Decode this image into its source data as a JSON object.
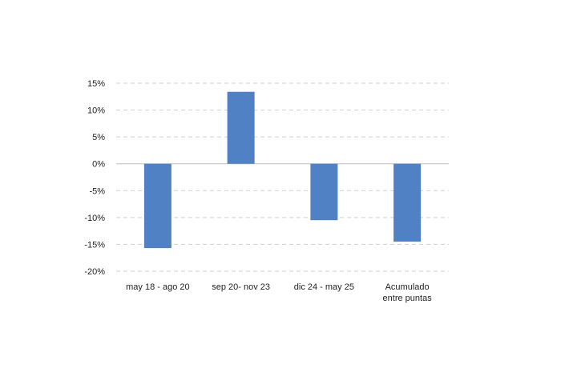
{
  "chart_data": {
    "type": "bar",
    "categories": [
      [
        "may 18 - ago 20"
      ],
      [
        "sep 20- nov 23"
      ],
      [
        "dic 24 - may 25"
      ],
      [
        "Acumulado",
        "entre puntas"
      ]
    ],
    "values": [
      -15.7,
      13.4,
      -10.5,
      -14.5
    ],
    "yticks": [
      "15%",
      "10%",
      "5%",
      "0%",
      "-5%",
      "-10%",
      "-15%",
      "-20%"
    ],
    "ylim": [
      -20,
      15
    ],
    "ytick_step": 5,
    "grid": true,
    "bar_color": "#4f81c4",
    "title": "",
    "xlabel": "",
    "ylabel": ""
  }
}
